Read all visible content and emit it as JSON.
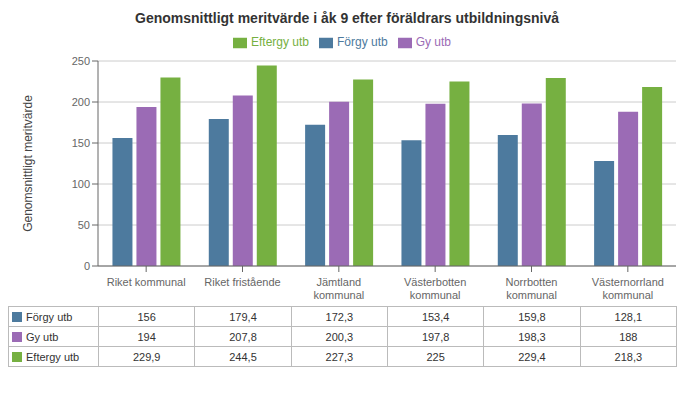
{
  "chart_data": {
    "type": "bar",
    "title": "Genomsnittligt meritvärde i åk 9 efter föräldrars utbildningsnivå",
    "y_label": "Genomsnittligt meritvärde",
    "categories": [
      "Riket kommunal",
      "Riket fristående",
      "Jämtland\nkommunal",
      "Västerbotten\nkommunal",
      "Norrbotten\nkommunal",
      "Västernorrland\nkommunal"
    ],
    "series": [
      {
        "name": "Förgy utb",
        "color": "#4d7a9e",
        "values": [
          156,
          179.4,
          172.3,
          153.4,
          159.8,
          128.1
        ],
        "value_labels": [
          "156",
          "179,4",
          "172,3",
          "153,4",
          "159,8",
          "128,1"
        ]
      },
      {
        "name": "Gy utb",
        "color": "#9b6bb5",
        "values": [
          194,
          207.8,
          200.3,
          197.8,
          198.3,
          188
        ],
        "value_labels": [
          "194",
          "207,8",
          "200,3",
          "197,8",
          "198,3",
          "188"
        ]
      },
      {
        "name": "Eftergy utb",
        "color": "#76b041",
        "values": [
          229.9,
          244.5,
          227.3,
          225,
          229.4,
          218.3
        ],
        "value_labels": [
          "229,9",
          "244,5",
          "227,3",
          "225",
          "229,4",
          "218,3"
        ]
      }
    ],
    "ylim": [
      0,
      250
    ],
    "yticks": [
      0,
      50,
      100,
      150,
      200,
      250
    ],
    "grid": true,
    "legend": "top"
  }
}
